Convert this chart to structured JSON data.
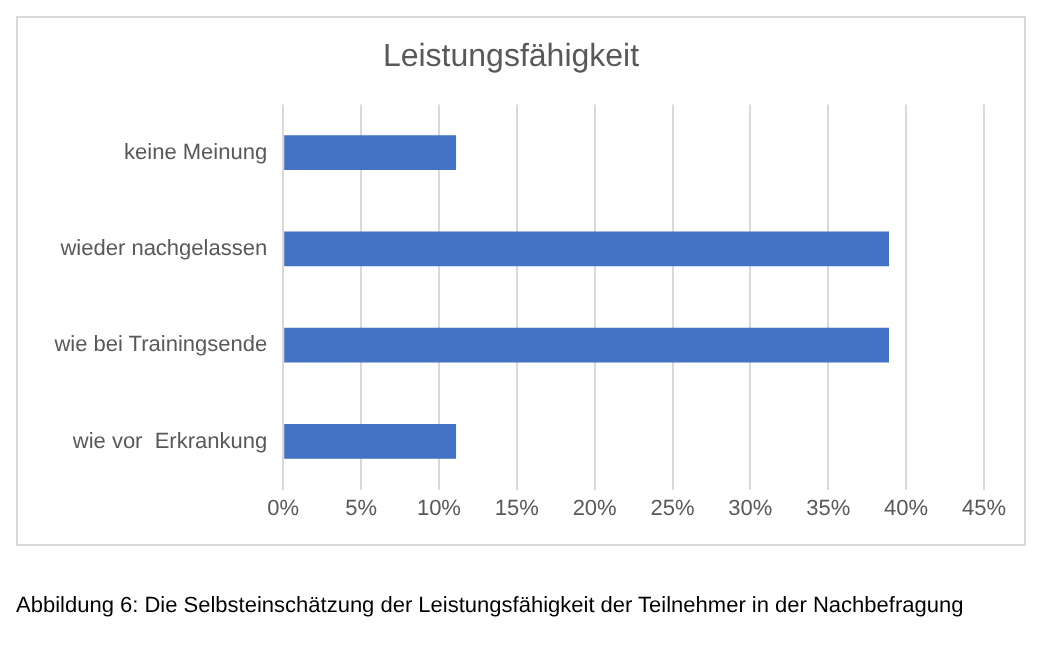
{
  "chart_data": {
    "type": "bar",
    "orientation": "horizontal",
    "title": "Leistungsfähigkeit",
    "categories": [
      "keine Meinung",
      "wieder nachgelassen",
      "wie bei Trainingsende",
      "wie vor  Erkrankung"
    ],
    "values": [
      11.1,
      38.9,
      38.9,
      11.1
    ],
    "color": "#4472c4",
    "xlim": [
      0,
      45
    ],
    "xticks": [
      {
        "value": 0,
        "label": "0%"
      },
      {
        "value": 5,
        "label": "5%"
      },
      {
        "value": 10,
        "label": "10%"
      },
      {
        "value": 15,
        "label": "15%"
      },
      {
        "value": 20,
        "label": "20%"
      },
      {
        "value": 25,
        "label": "25%"
      },
      {
        "value": 30,
        "label": "30%"
      },
      {
        "value": 35,
        "label": "35%"
      },
      {
        "value": 40,
        "label": "40%"
      },
      {
        "value": 45,
        "label": "45%"
      }
    ],
    "grid": "x",
    "legend": false,
    "annotations": [
      "Abbildung 6: Die Selbsteinschätzung der Leistungsfähigkeit der Teilnehmer in der Nachbefragung"
    ]
  }
}
